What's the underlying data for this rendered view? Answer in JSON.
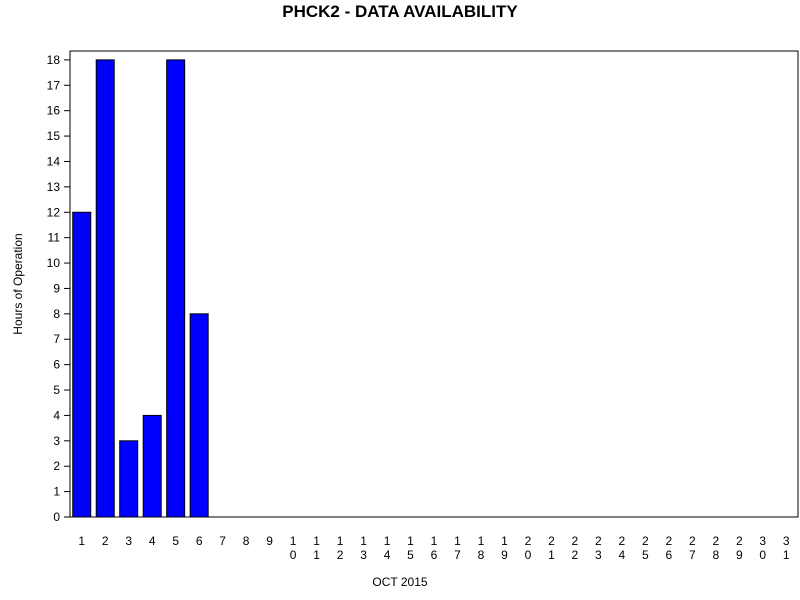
{
  "chart_data": {
    "type": "bar",
    "title": "PHCK2 - DATA AVAILABILITY",
    "x_label": "OCT 2015",
    "y_label": "Hours of Operation",
    "categories": [
      "1",
      "2",
      "3",
      "4",
      "5",
      "6",
      "7",
      "8",
      "9",
      "10",
      "11",
      "12",
      "13",
      "14",
      "15",
      "16",
      "17",
      "18",
      "19",
      "20",
      "21",
      "22",
      "23",
      "24",
      "25",
      "26",
      "27",
      "28",
      "29",
      "30",
      "31"
    ],
    "values": [
      12,
      18,
      3,
      4,
      18,
      8,
      0,
      0,
      0,
      0,
      0,
      0,
      0,
      0,
      0,
      0,
      0,
      0,
      0,
      0,
      0,
      0,
      0,
      0,
      0,
      0,
      0,
      0,
      0,
      0,
      0
    ],
    "color": "#0000ff",
    "ylim": [
      0,
      18.35
    ],
    "yticks": [
      0,
      1,
      2,
      3,
      4,
      5,
      6,
      7,
      8,
      9,
      10,
      11,
      12,
      13,
      14,
      15,
      16,
      17,
      18
    ]
  }
}
